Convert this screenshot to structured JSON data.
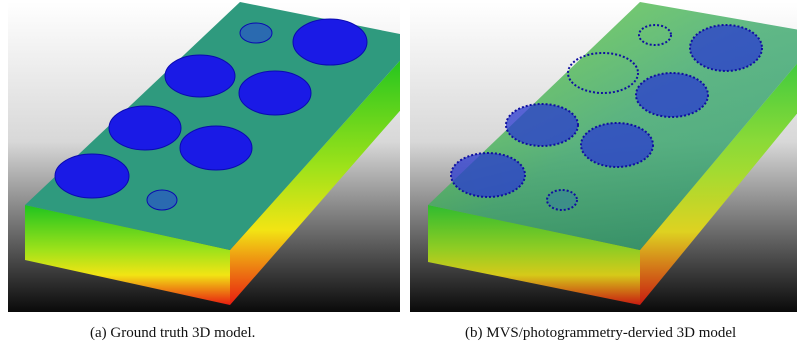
{
  "figure": {
    "subfigures": [
      {
        "caption": "(a) Ground truth 3D model."
      },
      {
        "caption": "(b) MVS/photogrammetry-dervied 3D model"
      }
    ]
  }
}
